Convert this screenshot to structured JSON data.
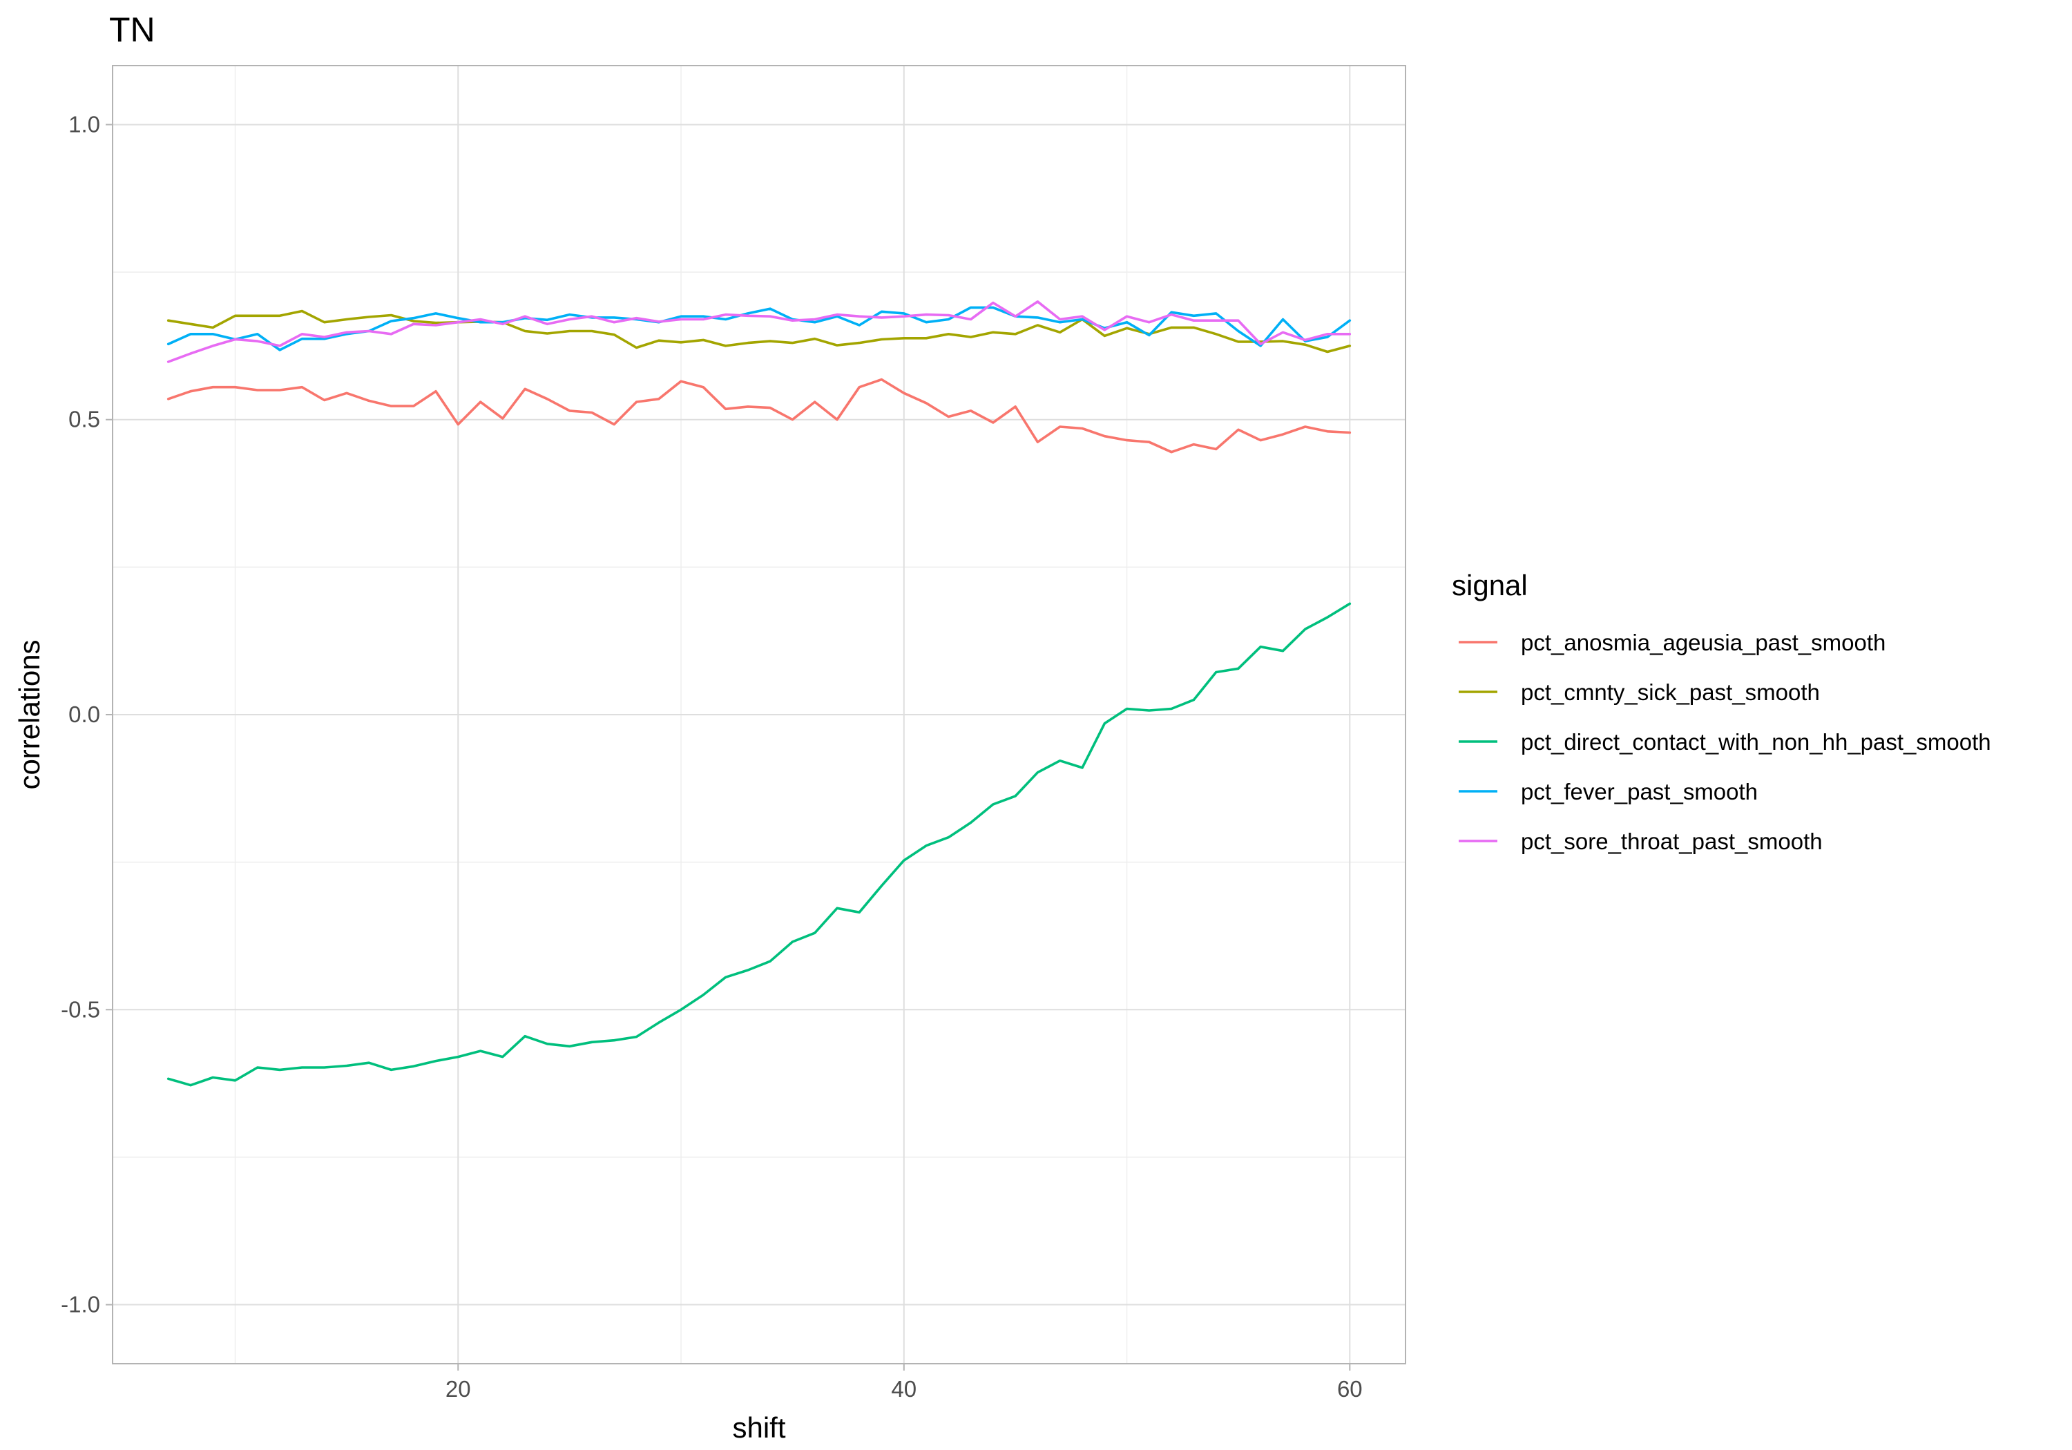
{
  "chart_data": {
    "type": "line",
    "title": "TN",
    "xlabel": "shift",
    "ylabel": "correlations",
    "xlim": [
      4.5,
      62.5
    ],
    "ylim": [
      -1.1,
      1.1
    ],
    "x_ticks": [
      20,
      40,
      60
    ],
    "x_tick_labels": [
      "20",
      "40",
      "60"
    ],
    "y_ticks": [
      -1.0,
      -0.5,
      0.0,
      0.5,
      1.0
    ],
    "y_tick_labels": [
      "-1.0",
      "-0.5",
      "0.0",
      "0.5",
      "1.0"
    ],
    "grid": true,
    "legend": {
      "title": "signal",
      "placement": "right"
    },
    "x_start": 7,
    "series": [
      {
        "name": "pct_anosmia_ageusia_past_smooth",
        "color": "#F8766D",
        "values": [
          0.535,
          0.548,
          0.555,
          0.555,
          0.55,
          0.55,
          0.555,
          0.533,
          0.545,
          0.532,
          0.523,
          0.523,
          0.548,
          0.492,
          0.53,
          0.502,
          0.552,
          0.535,
          0.515,
          0.512,
          0.492,
          0.53,
          0.535,
          0.565,
          0.555,
          0.518,
          0.522,
          0.52,
          0.5,
          0.53,
          0.5,
          0.555,
          0.568,
          0.545,
          0.528,
          0.505,
          0.515,
          0.495,
          0.522,
          0.462,
          0.488,
          0.485,
          0.472,
          0.465,
          0.462,
          0.445,
          0.458,
          0.45,
          0.483,
          0.465,
          0.475,
          0.488,
          0.48,
          0.478
        ]
      },
      {
        "name": "pct_cmnty_sick_past_smooth",
        "color": "#A3A500",
        "values": [
          0.668,
          0.662,
          0.656,
          0.676,
          0.676,
          0.676,
          0.684,
          0.665,
          0.67,
          0.674,
          0.677,
          0.667,
          0.664,
          0.665,
          0.666,
          0.665,
          0.65,
          0.646,
          0.65,
          0.65,
          0.644,
          0.622,
          0.634,
          0.631,
          0.635,
          0.625,
          0.63,
          0.633,
          0.63,
          0.637,
          0.626,
          0.63,
          0.636,
          0.638,
          0.638,
          0.645,
          0.64,
          0.648,
          0.645,
          0.66,
          0.648,
          0.67,
          0.642,
          0.655,
          0.645,
          0.656,
          0.656,
          0.645,
          0.632,
          0.632,
          0.633,
          0.627,
          0.615,
          0.625
        ]
      },
      {
        "name": "pct_direct_contact_with_non_hh_past_smooth",
        "color": "#00BF7D",
        "values": [
          -0.617,
          -0.628,
          -0.615,
          -0.62,
          -0.598,
          -0.602,
          -0.598,
          -0.598,
          -0.595,
          -0.59,
          -0.602,
          -0.596,
          -0.587,
          -0.58,
          -0.57,
          -0.58,
          -0.545,
          -0.558,
          -0.562,
          -0.555,
          -0.552,
          -0.546,
          -0.522,
          -0.5,
          -0.475,
          -0.445,
          -0.433,
          -0.418,
          -0.385,
          -0.37,
          -0.328,
          -0.335,
          -0.29,
          -0.247,
          -0.222,
          -0.208,
          -0.183,
          -0.152,
          -0.138,
          -0.098,
          -0.078,
          -0.09,
          -0.015,
          0.01,
          0.007,
          0.01,
          0.025,
          0.072,
          0.078,
          0.115,
          0.108,
          0.145,
          0.165,
          0.188
        ]
      },
      {
        "name": "pct_fever_past_smooth",
        "color": "#00B0F6",
        "values": [
          0.628,
          0.645,
          0.645,
          0.636,
          0.645,
          0.618,
          0.637,
          0.637,
          0.645,
          0.65,
          0.667,
          0.672,
          0.68,
          0.672,
          0.665,
          0.665,
          0.672,
          0.669,
          0.678,
          0.673,
          0.673,
          0.67,
          0.665,
          0.675,
          0.675,
          0.67,
          0.68,
          0.688,
          0.67,
          0.665,
          0.675,
          0.66,
          0.683,
          0.68,
          0.665,
          0.67,
          0.69,
          0.69,
          0.675,
          0.673,
          0.665,
          0.67,
          0.655,
          0.665,
          0.643,
          0.682,
          0.676,
          0.68,
          0.65,
          0.625,
          0.67,
          0.633,
          0.64,
          0.668
        ]
      },
      {
        "name": "pct_sore_throat_past_smooth",
        "color": "#E76BF3",
        "values": [
          0.598,
          0.612,
          0.625,
          0.636,
          0.633,
          0.625,
          0.645,
          0.64,
          0.648,
          0.65,
          0.645,
          0.662,
          0.66,
          0.665,
          0.67,
          0.662,
          0.675,
          0.662,
          0.67,
          0.675,
          0.665,
          0.672,
          0.666,
          0.67,
          0.67,
          0.678,
          0.676,
          0.675,
          0.668,
          0.67,
          0.678,
          0.675,
          0.673,
          0.675,
          0.678,
          0.677,
          0.67,
          0.698,
          0.675,
          0.7,
          0.67,
          0.675,
          0.652,
          0.675,
          0.665,
          0.678,
          0.668,
          0.668,
          0.668,
          0.628,
          0.648,
          0.635,
          0.645,
          0.645
        ]
      }
    ]
  }
}
